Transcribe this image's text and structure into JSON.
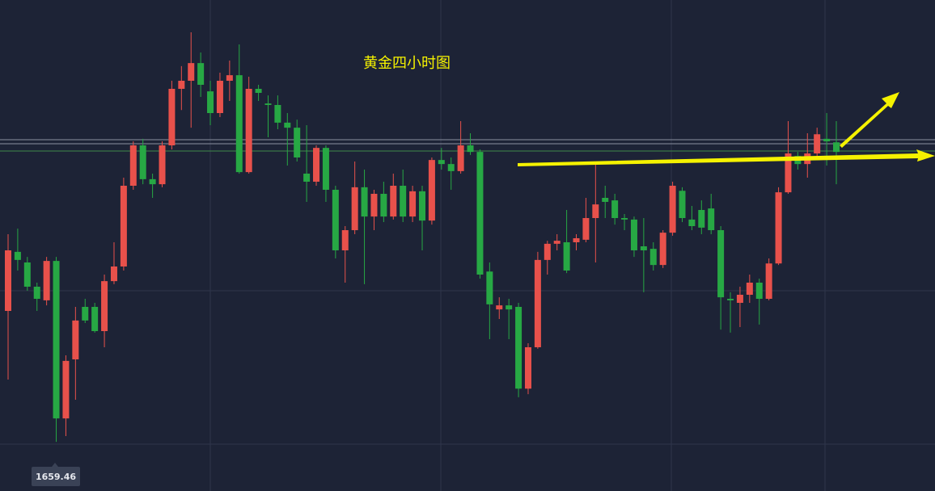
{
  "chart_data": {
    "type": "candlestick",
    "title": "黄金四小时图",
    "up_color": "#e8514b",
    "down_color": "#27a844",
    "ylim": [
      1649.72,
      1747
    ],
    "open": [
      1685.4,
      1697.1,
      1695.0,
      1690.2,
      1687.5,
      1695.3,
      1664.1,
      1675.8,
      1686.2,
      1686.2,
      1681.4,
      1691.3,
      1694.2,
      1710.2,
      1718.2,
      1711.5,
      1710.5,
      1718.2,
      1729.4,
      1731.0,
      1734.5,
      1728.9,
      1724.6,
      1731.0,
      1732.1,
      1712.9,
      1729.4,
      1726.5,
      1726.2,
      1722.7,
      1721.7,
      1712.6,
      1711.0,
      1717.7,
      1709.4,
      1697.4,
      1701.4,
      1709.9,
      1704.1,
      1708.6,
      1704.1,
      1710.2,
      1704.1,
      1709.1,
      1703.3,
      1715.3,
      1714.5,
      1713.1,
      1718.2,
      1716.9,
      1693.2,
      1685.7,
      1686.5,
      1686.2,
      1670.0,
      1678.2,
      1695.5,
      1698.7,
      1699.0,
      1699.0,
      1699.5,
      1703.8,
      1707.8,
      1707.3,
      1703.8,
      1703.5,
      1698.2,
      1697.7,
      1694.5,
      1700.9,
      1709.2,
      1703.5,
      1705.4,
      1705.7,
      1701.4,
      1687.8,
      1687.0,
      1688.6,
      1691.0,
      1687.8,
      1694.8,
      1708.9,
      1716.1,
      1714.5,
      1716.6,
      1719.5,
      1718.8
    ],
    "high": [
      1700.6,
      1701.7,
      1696.1,
      1691.0,
      1696.1,
      1696.1,
      1676.6,
      1686.2,
      1687.8,
      1687.0,
      1692.6,
      1699.0,
      1711.8,
      1719.0,
      1719.5,
      1712.6,
      1719.0,
      1731.0,
      1733.9,
      1740.6,
      1736.6,
      1731.0,
      1732.6,
      1735.0,
      1738.2,
      1731.8,
      1730.2,
      1728.1,
      1728.1,
      1724.6,
      1723.3,
      1722.2,
      1718.2,
      1718.2,
      1710.2,
      1702.2,
      1715.0,
      1713.4,
      1709.4,
      1711.0,
      1712.6,
      1713.4,
      1710.2,
      1710.2,
      1715.8,
      1717.7,
      1715.8,
      1723.0,
      1720.6,
      1717.4,
      1695.0,
      1688.1,
      1687.8,
      1687.0,
      1679.0,
      1697.1,
      1699.3,
      1700.6,
      1705.4,
      1700.6,
      1707.8,
      1714.5,
      1710.2,
      1708.6,
      1704.6,
      1704.1,
      1703.8,
      1699.0,
      1701.4,
      1711.0,
      1709.9,
      1706.2,
      1707.3,
      1708.6,
      1702.2,
      1689.1,
      1690.2,
      1692.6,
      1691.8,
      1695.8,
      1709.9,
      1723.0,
      1716.9,
      1720.6,
      1721.7,
      1724.6,
      1723.0
    ],
    "low": [
      1671.8,
      1693.4,
      1689.4,
      1685.4,
      1686.5,
      1659.46,
      1660.6,
      1667.8,
      1683.0,
      1681.1,
      1678.2,
      1690.7,
      1693.4,
      1709.4,
      1710.5,
      1707.8,
      1709.9,
      1717.4,
      1725.2,
      1721.7,
      1727.8,
      1722.2,
      1723.8,
      1727.0,
      1712.6,
      1712.6,
      1727.0,
      1719.8,
      1721.4,
      1714.2,
      1715.0,
      1707.0,
      1710.2,
      1707.0,
      1695.8,
      1691.0,
      1700.6,
      1690.7,
      1701.4,
      1703.0,
      1703.5,
      1703.0,
      1703.0,
      1697.4,
      1702.5,
      1713.4,
      1709.4,
      1712.6,
      1716.3,
      1691.8,
      1679.8,
      1683.8,
      1679.8,
      1668.3,
      1668.9,
      1677.9,
      1692.6,
      1697.4,
      1692.9,
      1697.4,
      1699.0,
      1695.0,
      1703.8,
      1702.5,
      1701.4,
      1696.1,
      1689.1,
      1693.4,
      1693.9,
      1700.3,
      1703.0,
      1701.4,
      1700.6,
      1700.6,
      1681.7,
      1681.1,
      1682.2,
      1687.0,
      1682.7,
      1687.5,
      1694.5,
      1708.6,
      1713.4,
      1711.8,
      1715.8,
      1714.2,
      1710.5
    ],
    "close": [
      1697.4,
      1695.5,
      1690.2,
      1687.8,
      1695.3,
      1664.1,
      1675.5,
      1683.5,
      1683.5,
      1681.4,
      1691.3,
      1694.2,
      1710.2,
      1718.2,
      1711.5,
      1710.5,
      1718.2,
      1729.4,
      1731.0,
      1734.5,
      1730.2,
      1724.6,
      1731.0,
      1732.1,
      1712.9,
      1729.4,
      1728.6,
      1726.2,
      1722.7,
      1721.7,
      1715.8,
      1711.0,
      1717.7,
      1709.4,
      1697.4,
      1701.4,
      1709.9,
      1704.1,
      1708.6,
      1704.1,
      1710.2,
      1704.1,
      1709.1,
      1703.3,
      1715.3,
      1714.5,
      1713.1,
      1718.2,
      1716.9,
      1692.6,
      1686.7,
      1686.5,
      1685.7,
      1670.0,
      1678.2,
      1695.5,
      1698.7,
      1699.3,
      1693.4,
      1699.8,
      1703.8,
      1706.5,
      1707.0,
      1703.8,
      1703.5,
      1697.4,
      1697.4,
      1694.5,
      1700.9,
      1710.2,
      1703.8,
      1702.2,
      1701.9,
      1701.4,
      1688.1,
      1687.5,
      1688.6,
      1691.0,
      1687.8,
      1694.8,
      1708.9,
      1716.6,
      1714.5,
      1716.6,
      1720.4,
      1719.0,
      1716.9
    ]
  }
}
